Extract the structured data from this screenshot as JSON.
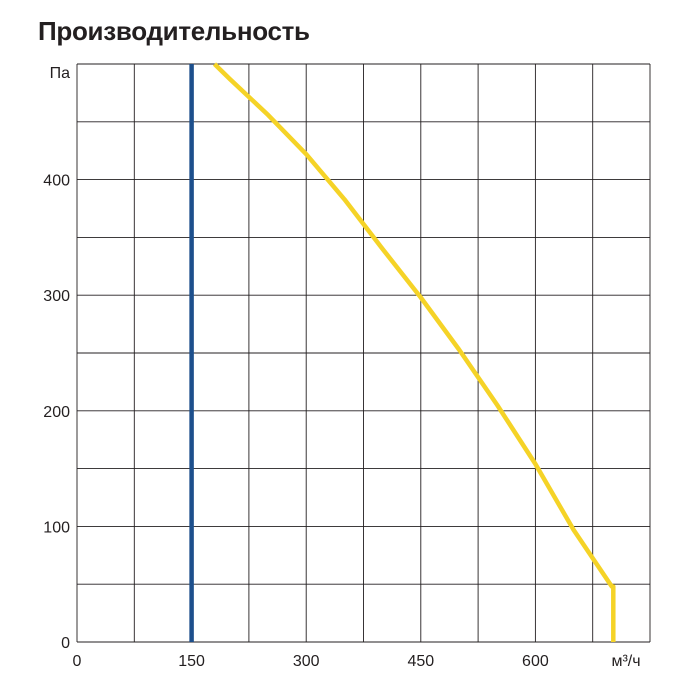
{
  "chart_data": {
    "type": "line",
    "title": "Производительность",
    "ylabel": "Па",
    "xlabel": "м³/ч",
    "xlim": [
      0,
      750
    ],
    "ylim": [
      0,
      500
    ],
    "x_ticks": [
      0,
      150,
      300,
      450,
      600
    ],
    "y_ticks": [
      0,
      100,
      200,
      300,
      400
    ],
    "grid": true,
    "series": [
      {
        "color": "#f5d327",
        "points": [
          [
            180,
            500
          ],
          [
            200,
            487
          ],
          [
            250,
            456
          ],
          [
            300,
            422
          ],
          [
            350,
            383
          ],
          [
            400,
            340
          ],
          [
            450,
            298
          ],
          [
            500,
            253
          ],
          [
            550,
            205
          ],
          [
            600,
            154
          ],
          [
            650,
            97
          ],
          [
            700,
            48
          ],
          [
            702,
            48
          ],
          [
            702,
            0
          ]
        ]
      },
      {
        "color": "#1d4f8c",
        "points": [
          [
            150,
            0
          ],
          [
            150,
            500
          ]
        ]
      }
    ]
  }
}
